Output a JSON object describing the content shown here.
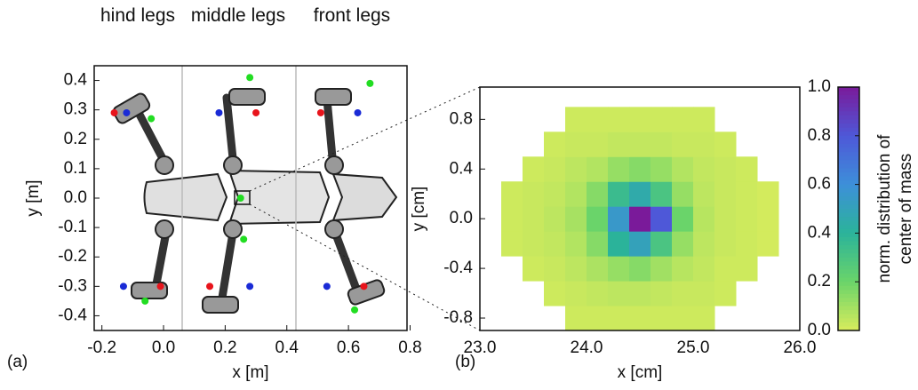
{
  "chart_data": [
    {
      "type": "scatter",
      "xlabel": "x [m]",
      "ylabel": "y [m]",
      "panel_label": "(a)",
      "group_labels": [
        "hind legs",
        "middle legs",
        "front legs"
      ],
      "xlim": [
        -0.225,
        0.79
      ],
      "ylim": [
        -0.45,
        0.45
      ],
      "xticks": [
        -0.2,
        {
          "value": 0,
          "label": "0.0"
        },
        0.2,
        0.4,
        0.6,
        0.8
      ],
      "yticks": [
        -0.4,
        -0.3,
        -0.2,
        -0.1,
        {
          "value": 0,
          "label": "0.0"
        },
        0.1,
        0.2,
        0.3,
        0.4
      ],
      "series": [
        {
          "color": "#e8141c",
          "x": [
            -0.16,
            0.3,
            0.51,
            -0.01,
            0.15,
            0.65
          ],
          "y": [
            0.29,
            0.29,
            0.29,
            -0.3,
            -0.3,
            -0.3
          ]
        },
        {
          "color": "#1a2bd6",
          "x": [
            -0.12,
            0.18,
            0.63,
            -0.13,
            0.28,
            0.53
          ],
          "y": [
            0.29,
            0.29,
            0.29,
            -0.3,
            -0.3,
            -0.3
          ]
        },
        {
          "color": "#22dd22",
          "x": [
            -0.04,
            0.28,
            0.67,
            -0.06,
            0.26,
            0.62,
            0.25
          ],
          "y": [
            0.27,
            0.41,
            0.39,
            -0.35,
            -0.14,
            -0.38,
            0.0
          ]
        }
      ]
    },
    {
      "type": "heatmap",
      "xlabel": "x [cm]",
      "ylabel": "y [cm]",
      "panel_label": "(b)",
      "colorbar_label": [
        "norm. distribution of",
        "center of mass"
      ],
      "xlim": [
        23.0,
        26.0
      ],
      "ylim": [
        -0.9,
        1.06
      ],
      "xticks": [
        {
          "value": 23,
          "label": "23.0"
        },
        {
          "value": 24,
          "label": "24.0"
        },
        {
          "value": 25,
          "label": "25.0"
        },
        {
          "value": 26,
          "label": "26.0"
        }
      ],
      "yticks": [
        -0.8,
        -0.4,
        {
          "value": 0,
          "label": "0.0"
        },
        0.4,
        0.8
      ],
      "clim": [
        0,
        1
      ],
      "cticks": [
        {
          "value": 0,
          "label": "0.0"
        },
        0.2,
        0.4,
        0.6,
        0.8,
        {
          "value": 1,
          "label": "1.0"
        }
      ],
      "colormap": [
        "#d8ec5c",
        "#6ad46a",
        "#2bb39a",
        "#3d8fd9",
        "#4e58d8",
        "#7a1a9a"
      ],
      "x_bins": [
        23.2,
        23.4,
        23.6,
        23.8,
        24.0,
        24.2,
        24.4,
        24.6,
        24.8,
        25.0,
        25.2,
        25.4,
        25.6,
        25.8
      ],
      "y_bins": [
        -0.9,
        -0.7,
        -0.5,
        -0.3,
        -0.1,
        0.1,
        0.3,
        0.5,
        0.7,
        0.9
      ],
      "z": [
        [
          null,
          null,
          null,
          0.02,
          0.02,
          0.02,
          0.02,
          0.02,
          0.02,
          0.02,
          null,
          null,
          null
        ],
        [
          null,
          null,
          0.02,
          0.03,
          0.04,
          0.05,
          0.05,
          0.04,
          0.03,
          0.03,
          0.02,
          null,
          null
        ],
        [
          null,
          0.02,
          0.03,
          0.05,
          0.08,
          0.12,
          0.15,
          0.1,
          0.06,
          0.04,
          0.02,
          0.02,
          null
        ],
        [
          0.02,
          0.03,
          0.04,
          0.07,
          0.15,
          0.4,
          0.5,
          0.3,
          0.12,
          0.05,
          0.03,
          0.02,
          0.01
        ],
        [
          0.02,
          0.03,
          0.05,
          0.09,
          0.2,
          0.55,
          1.0,
          0.8,
          0.2,
          0.06,
          0.03,
          0.02,
          0.01
        ],
        [
          0.02,
          0.03,
          0.04,
          0.07,
          0.15,
          0.35,
          0.45,
          0.3,
          0.12,
          0.05,
          0.03,
          0.02,
          0.01
        ],
        [
          null,
          0.02,
          0.03,
          0.05,
          0.07,
          0.12,
          0.15,
          0.12,
          0.07,
          0.04,
          0.03,
          0.02,
          null
        ],
        [
          null,
          null,
          0.02,
          0.03,
          0.03,
          0.04,
          0.04,
          0.04,
          0.03,
          0.03,
          0.02,
          null,
          null
        ],
        [
          null,
          null,
          null,
          0.02,
          0.02,
          0.02,
          0.02,
          0.02,
          0.02,
          0.02,
          null,
          null,
          null
        ]
      ]
    }
  ]
}
